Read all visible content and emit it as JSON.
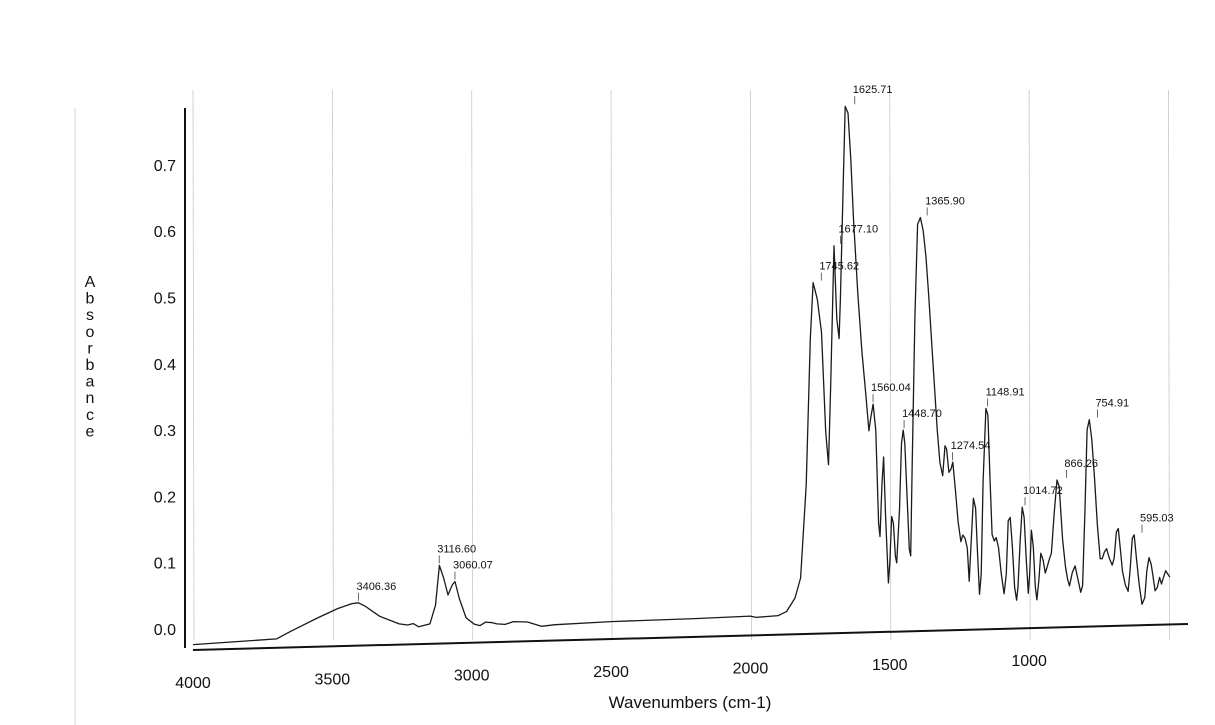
{
  "chart_data": {
    "type": "line",
    "title": "",
    "xlabel": "Wavenumbers (cm-1)",
    "ylabel": "Absorbance",
    "xlim": [
      4000,
      430
    ],
    "ylim": [
      -0.03,
      0.78
    ],
    "x_reversed": true,
    "grid": "vertical",
    "x_ticks": [
      {
        "value": 4000,
        "label": "4000"
      },
      {
        "value": 3500,
        "label": "3500"
      },
      {
        "value": 3000,
        "label": "3000"
      },
      {
        "value": 2500,
        "label": "2500"
      },
      {
        "value": 2000,
        "label": "2000"
      },
      {
        "value": 1500,
        "label": "1500"
      },
      {
        "value": 1000,
        "label": "1000"
      }
    ],
    "y_ticks": [
      {
        "value": 0.0,
        "label": "0.0"
      },
      {
        "value": 0.1,
        "label": "0.1"
      },
      {
        "value": 0.2,
        "label": "0.2"
      },
      {
        "value": 0.3,
        "label": "0.3"
      },
      {
        "value": 0.4,
        "label": "0.4"
      },
      {
        "value": 0.5,
        "label": "0.5"
      },
      {
        "value": 0.6,
        "label": "0.6"
      },
      {
        "value": 0.7,
        "label": "0.7"
      }
    ],
    "series": [
      {
        "points": [
          [
            4000,
            -0.022
          ],
          [
            3700,
            -0.016
          ],
          [
            3650,
            -0.005
          ],
          [
            3550,
            0.015
          ],
          [
            3480,
            0.028
          ],
          [
            3430,
            0.035
          ],
          [
            3406,
            0.036
          ],
          [
            3380,
            0.03
          ],
          [
            3330,
            0.015
          ],
          [
            3260,
            0.003
          ],
          [
            3230,
            0.001
          ],
          [
            3210,
            0.003
          ],
          [
            3190,
            -0.002
          ],
          [
            3150,
            0.002
          ],
          [
            3130,
            0.03
          ],
          [
            3116,
            0.09
          ],
          [
            3100,
            0.07
          ],
          [
            3085,
            0.045
          ],
          [
            3070,
            0.06
          ],
          [
            3060,
            0.065
          ],
          [
            3045,
            0.04
          ],
          [
            3020,
            0.01
          ],
          [
            2990,
            0.0
          ],
          [
            2970,
            -0.002
          ],
          [
            2950,
            0.003
          ],
          [
            2925,
            0.002
          ],
          [
            2910,
            0.0
          ],
          [
            2880,
            -0.001
          ],
          [
            2850,
            0.003
          ],
          [
            2800,
            0.002
          ],
          [
            2750,
            -0.005
          ],
          [
            2700,
            -0.003
          ],
          [
            2500,
            0.0
          ],
          [
            2200,
            0.002
          ],
          [
            2000,
            0.004
          ],
          [
            1980,
            0.002
          ],
          [
            1940,
            0.003
          ],
          [
            1900,
            0.004
          ],
          [
            1870,
            0.01
          ],
          [
            1840,
            0.03
          ],
          [
            1820,
            0.06
          ],
          [
            1800,
            0.2
          ],
          [
            1785,
            0.42
          ],
          [
            1775,
            0.505
          ],
          [
            1760,
            0.48
          ],
          [
            1745,
            0.43
          ],
          [
            1730,
            0.28
          ],
          [
            1720,
            0.23
          ],
          [
            1712,
            0.35
          ],
          [
            1700,
            0.56
          ],
          [
            1690,
            0.45
          ],
          [
            1682,
            0.42
          ],
          [
            1677,
            0.48
          ],
          [
            1668,
            0.64
          ],
          [
            1660,
            0.77
          ],
          [
            1650,
            0.76
          ],
          [
            1640,
            0.69
          ],
          [
            1630,
            0.6
          ],
          [
            1615,
            0.49
          ],
          [
            1600,
            0.4
          ],
          [
            1585,
            0.33
          ],
          [
            1575,
            0.28
          ],
          [
            1568,
            0.3
          ],
          [
            1560,
            0.32
          ],
          [
            1550,
            0.28
          ],
          [
            1540,
            0.14
          ],
          [
            1535,
            0.12
          ],
          [
            1528,
            0.2
          ],
          [
            1522,
            0.24
          ],
          [
            1515,
            0.15
          ],
          [
            1505,
            0.05
          ],
          [
            1500,
            0.08
          ],
          [
            1493,
            0.15
          ],
          [
            1487,
            0.14
          ],
          [
            1480,
            0.09
          ],
          [
            1475,
            0.08
          ],
          [
            1465,
            0.16
          ],
          [
            1458,
            0.26
          ],
          [
            1452,
            0.28
          ],
          [
            1446,
            0.26
          ],
          [
            1440,
            0.2
          ],
          [
            1430,
            0.1
          ],
          [
            1425,
            0.09
          ],
          [
            1420,
            0.22
          ],
          [
            1410,
            0.45
          ],
          [
            1400,
            0.59
          ],
          [
            1390,
            0.6
          ],
          [
            1380,
            0.58
          ],
          [
            1370,
            0.54
          ],
          [
            1360,
            0.48
          ],
          [
            1345,
            0.38
          ],
          [
            1330,
            0.28
          ],
          [
            1320,
            0.23
          ],
          [
            1310,
            0.21
          ],
          [
            1302,
            0.255
          ],
          [
            1296,
            0.25
          ],
          [
            1288,
            0.215
          ],
          [
            1280,
            0.22
          ],
          [
            1274,
            0.23
          ],
          [
            1265,
            0.19
          ],
          [
            1255,
            0.14
          ],
          [
            1245,
            0.11
          ],
          [
            1238,
            0.12
          ],
          [
            1230,
            0.115
          ],
          [
            1222,
            0.1
          ],
          [
            1215,
            0.05
          ],
          [
            1208,
            0.11
          ],
          [
            1200,
            0.175
          ],
          [
            1192,
            0.16
          ],
          [
            1185,
            0.09
          ],
          [
            1178,
            0.03
          ],
          [
            1172,
            0.06
          ],
          [
            1165,
            0.2
          ],
          [
            1155,
            0.31
          ],
          [
            1148,
            0.3
          ],
          [
            1140,
            0.2
          ],
          [
            1133,
            0.12
          ],
          [
            1125,
            0.11
          ],
          [
            1118,
            0.115
          ],
          [
            1110,
            0.1
          ],
          [
            1100,
            0.06
          ],
          [
            1090,
            0.03
          ],
          [
            1082,
            0.06
          ],
          [
            1075,
            0.14
          ],
          [
            1068,
            0.145
          ],
          [
            1060,
            0.1
          ],
          [
            1052,
            0.04
          ],
          [
            1045,
            0.02
          ],
          [
            1040,
            0.04
          ],
          [
            1032,
            0.11
          ],
          [
            1025,
            0.16
          ],
          [
            1018,
            0.145
          ],
          [
            1010,
            0.08
          ],
          [
            1003,
            0.03
          ],
          [
            998,
            0.06
          ],
          [
            992,
            0.125
          ],
          [
            985,
            0.1
          ],
          [
            978,
            0.04
          ],
          [
            972,
            0.02
          ],
          [
            965,
            0.05
          ],
          [
            958,
            0.09
          ],
          [
            950,
            0.08
          ],
          [
            942,
            0.06
          ],
          [
            935,
            0.07
          ],
          [
            928,
            0.08
          ],
          [
            920,
            0.09
          ],
          [
            910,
            0.15
          ],
          [
            900,
            0.2
          ],
          [
            892,
            0.19
          ],
          [
            880,
            0.11
          ],
          [
            870,
            0.07
          ],
          [
            862,
            0.05
          ],
          [
            855,
            0.04
          ],
          [
            845,
            0.06
          ],
          [
            835,
            0.07
          ],
          [
            825,
            0.05
          ],
          [
            815,
            0.03
          ],
          [
            808,
            0.04
          ],
          [
            800,
            0.15
          ],
          [
            792,
            0.275
          ],
          [
            784,
            0.29
          ],
          [
            775,
            0.26
          ],
          [
            765,
            0.2
          ],
          [
            755,
            0.13
          ],
          [
            745,
            0.08
          ],
          [
            738,
            0.08
          ],
          [
            730,
            0.09
          ],
          [
            722,
            0.095
          ],
          [
            712,
            0.08
          ],
          [
            702,
            0.07
          ],
          [
            695,
            0.08
          ],
          [
            687,
            0.12
          ],
          [
            680,
            0.125
          ],
          [
            672,
            0.09
          ],
          [
            665,
            0.06
          ],
          [
            655,
            0.04
          ],
          [
            645,
            0.03
          ],
          [
            638,
            0.06
          ],
          [
            630,
            0.11
          ],
          [
            623,
            0.115
          ],
          [
            615,
            0.08
          ],
          [
            605,
            0.04
          ],
          [
            595,
            0.01
          ],
          [
            585,
            0.02
          ],
          [
            578,
            0.06
          ],
          [
            570,
            0.08
          ],
          [
            562,
            0.07
          ],
          [
            555,
            0.05
          ],
          [
            548,
            0.03
          ],
          [
            540,
            0.035
          ],
          [
            532,
            0.05
          ],
          [
            525,
            0.04
          ],
          [
            518,
            0.05
          ],
          [
            510,
            0.06
          ],
          [
            503,
            0.055
          ],
          [
            495,
            0.05
          ]
        ]
      }
    ],
    "peak_labels": [
      {
        "x": 3406.36,
        "y": 0.036,
        "label": "3406.36"
      },
      {
        "x": 3116.6,
        "y": 0.09,
        "label": "3116.60"
      },
      {
        "x": 3060.07,
        "y": 0.065,
        "label": "3060.07"
      },
      {
        "x": 1745.62,
        "y": 0.505,
        "label": "1745.62"
      },
      {
        "x": 1677.1,
        "y": 0.56,
        "label": "1677.10"
      },
      {
        "x": 1625.71,
        "y": 0.77,
        "label": "1625.71"
      },
      {
        "x": 1560.04,
        "y": 0.32,
        "label": "1560.04"
      },
      {
        "x": 1448.7,
        "y": 0.28,
        "label": "1448.70"
      },
      {
        "x": 1365.9,
        "y": 0.6,
        "label": "1365.90"
      },
      {
        "x": 1274.54,
        "y": 0.23,
        "label": "1274.54"
      },
      {
        "x": 1148.91,
        "y": 0.31,
        "label": "1148.91"
      },
      {
        "x": 1014.72,
        "y": 0.16,
        "label": "1014.72"
      },
      {
        "x": 866.26,
        "y": 0.2,
        "label": "866.26"
      },
      {
        "x": 754.91,
        "y": 0.29,
        "label": "754.91"
      },
      {
        "x": 595.03,
        "y": 0.115,
        "label": "595.03"
      }
    ]
  }
}
